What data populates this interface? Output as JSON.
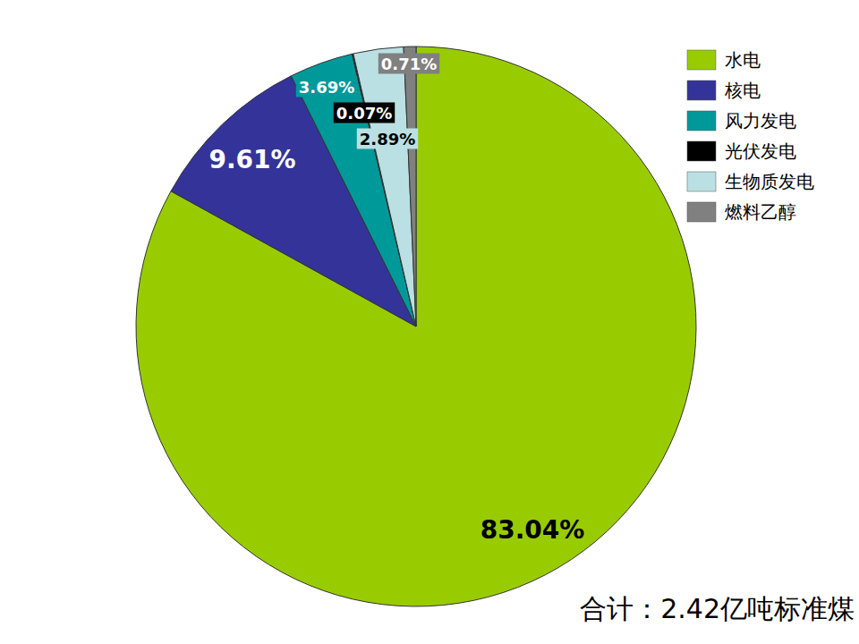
{
  "chart_data": {
    "type": "pie",
    "categories": [
      "水电",
      "核电",
      "风力发电",
      "光伏发电",
      "生物质发电",
      "燃料乙醇"
    ],
    "values": [
      83.04,
      9.61,
      3.69,
      0.07,
      2.89,
      0.71
    ],
    "value_labels": [
      "83.04%",
      "9.61%",
      "3.69%",
      "0.07%",
      "2.89%",
      "0.71%"
    ],
    "colors": [
      "#99cc00",
      "#333399",
      "#009999",
      "#000000",
      "#bbe0e3",
      "#808080"
    ],
    "data_labels": true,
    "legend": "top-right",
    "annotation": "合计：2.42亿吨标准煤"
  }
}
